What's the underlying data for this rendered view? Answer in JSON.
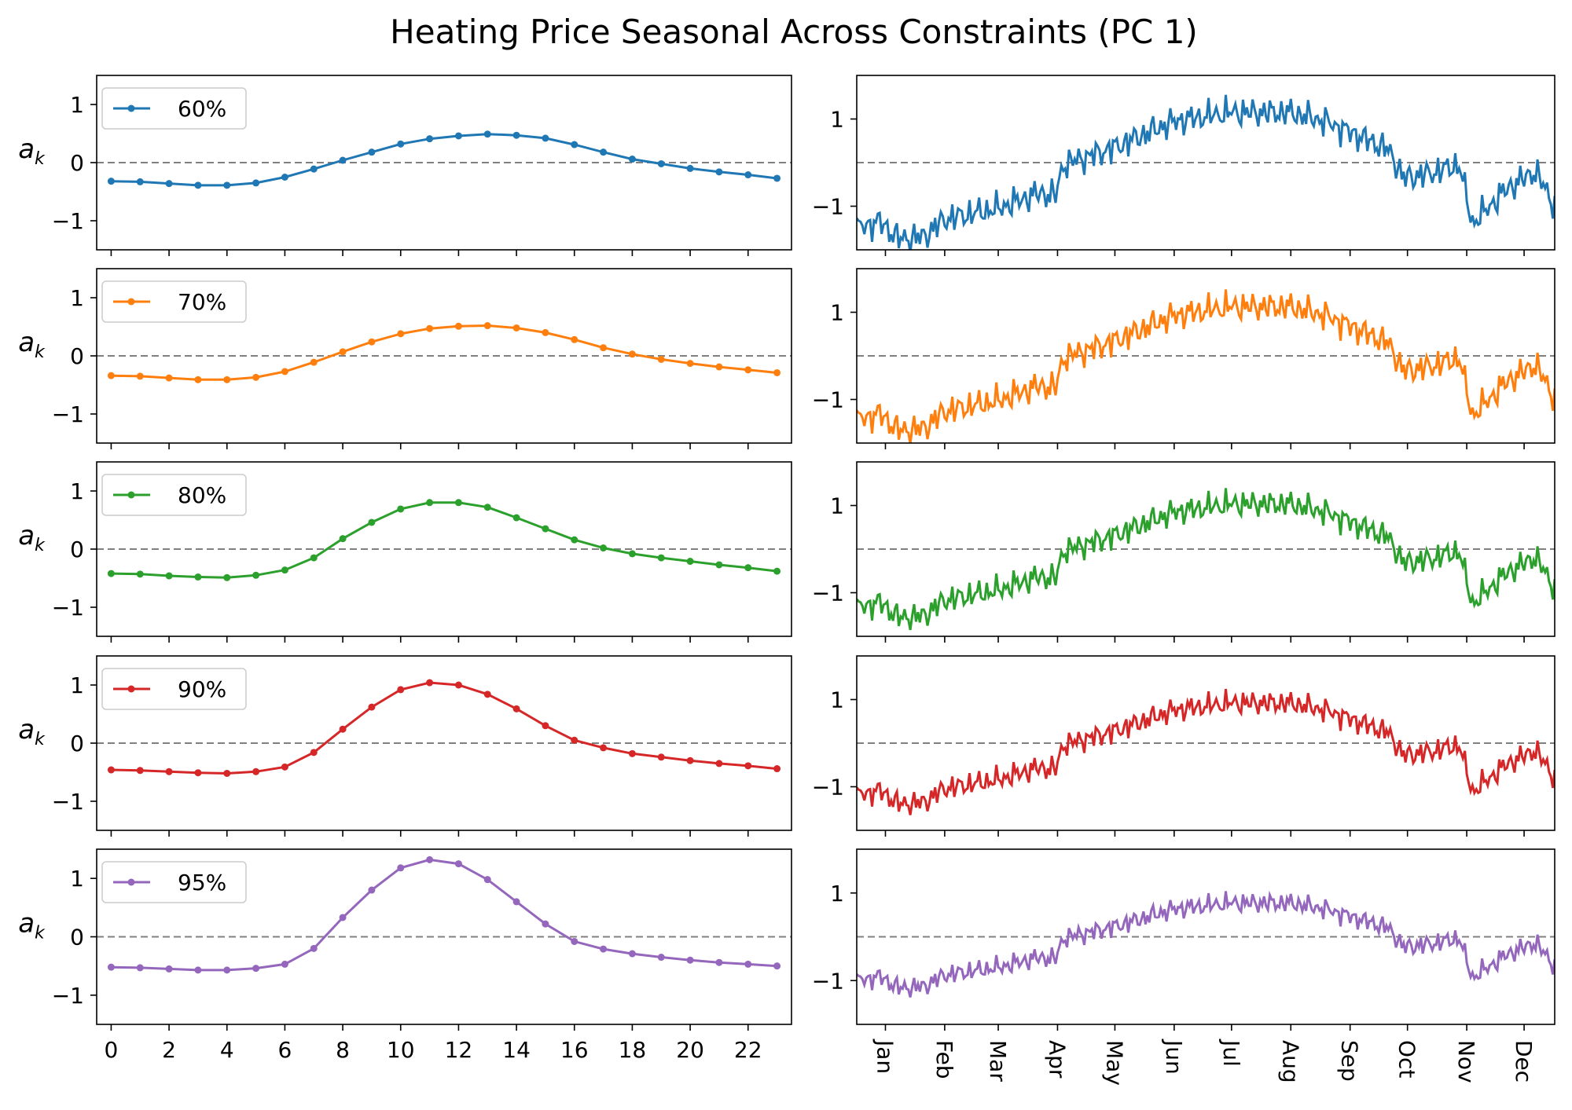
{
  "title": "Heating Price Seasonal Across Constraints (PC 1)",
  "colors": {
    "60%": "#1f77b4",
    "70%": "#ff7f0e",
    "80%": "#2ca02c",
    "90%": "#d62728",
    "95%": "#9467bd",
    "zero_line": "#808080"
  },
  "chart_data": [
    {
      "panel": "left",
      "type": "line",
      "markers": true,
      "ylabel": "a_k",
      "xlim": [
        -0.5,
        23.5
      ],
      "ylim": [
        -1.5,
        1.5
      ],
      "x_ticks": [
        0,
        2,
        4,
        6,
        8,
        10,
        12,
        14,
        16,
        18,
        20,
        22
      ],
      "y_ticks": [
        -1,
        0,
        1
      ],
      "reference_line": 0,
      "legend_location": "upper left",
      "x": [
        0,
        1,
        2,
        3,
        4,
        5,
        6,
        7,
        8,
        9,
        10,
        11,
        12,
        13,
        14,
        15,
        16,
        17,
        18,
        19,
        20,
        21,
        22,
        23
      ],
      "series": [
        {
          "name": "60%",
          "values": [
            -0.32,
            -0.33,
            -0.36,
            -0.39,
            -0.39,
            -0.35,
            -0.25,
            -0.11,
            0.04,
            0.18,
            0.32,
            0.41,
            0.46,
            0.49,
            0.47,
            0.42,
            0.31,
            0.18,
            0.06,
            -0.02,
            -0.1,
            -0.16,
            -0.21,
            -0.27
          ]
        },
        {
          "name": "70%",
          "values": [
            -0.34,
            -0.35,
            -0.38,
            -0.41,
            -0.41,
            -0.37,
            -0.27,
            -0.11,
            0.07,
            0.24,
            0.38,
            0.47,
            0.51,
            0.52,
            0.48,
            0.4,
            0.28,
            0.14,
            0.03,
            -0.06,
            -0.13,
            -0.19,
            -0.24,
            -0.29
          ]
        },
        {
          "name": "80%",
          "values": [
            -0.42,
            -0.43,
            -0.46,
            -0.48,
            -0.49,
            -0.45,
            -0.36,
            -0.15,
            0.18,
            0.46,
            0.69,
            0.8,
            0.8,
            0.72,
            0.54,
            0.35,
            0.16,
            0.02,
            -0.08,
            -0.15,
            -0.21,
            -0.27,
            -0.32,
            -0.38
          ]
        },
        {
          "name": "90%",
          "values": [
            -0.46,
            -0.47,
            -0.49,
            -0.51,
            -0.52,
            -0.49,
            -0.41,
            -0.16,
            0.24,
            0.62,
            0.92,
            1.04,
            1.0,
            0.84,
            0.59,
            0.3,
            0.05,
            -0.08,
            -0.18,
            -0.24,
            -0.3,
            -0.35,
            -0.39,
            -0.44
          ]
        },
        {
          "name": "95%",
          "values": [
            -0.52,
            -0.53,
            -0.55,
            -0.57,
            -0.57,
            -0.54,
            -0.47,
            -0.2,
            0.33,
            0.8,
            1.18,
            1.32,
            1.25,
            0.98,
            0.6,
            0.22,
            -0.08,
            -0.21,
            -0.29,
            -0.35,
            -0.4,
            -0.44,
            -0.47,
            -0.5
          ]
        }
      ]
    },
    {
      "panel": "right",
      "type": "line",
      "markers": false,
      "ylim": [
        -2.0,
        2.0
      ],
      "y_ticks": [
        -1,
        1
      ],
      "x_unit": "day of year",
      "xlim": [
        0,
        365
      ],
      "reference_line": 0,
      "month_ticks": [
        {
          "label": "Jan",
          "day": 15
        },
        {
          "label": "Feb",
          "day": 46
        },
        {
          "label": "Mar",
          "day": 74
        },
        {
          "label": "Apr",
          "day": 105
        },
        {
          "label": "May",
          "day": 135
        },
        {
          "label": "Jun",
          "day": 166
        },
        {
          "label": "Jul",
          "day": 196
        },
        {
          "label": "Aug",
          "day": 227
        },
        {
          "label": "Sep",
          "day": 258
        },
        {
          "label": "Oct",
          "day": 288
        },
        {
          "label": "Nov",
          "day": 319
        },
        {
          "label": "Dec",
          "day": 349
        }
      ],
      "series_profile_points": [
        {
          "day": 0,
          "value": -1.5
        },
        {
          "day": 12,
          "value": -1.35
        },
        {
          "day": 22,
          "value": -1.75
        },
        {
          "day": 35,
          "value": -1.7
        },
        {
          "day": 46,
          "value": -1.3
        },
        {
          "day": 74,
          "value": -1.05
        },
        {
          "day": 95,
          "value": -0.7
        },
        {
          "day": 104,
          "value": -0.75
        },
        {
          "day": 108,
          "value": -0.05
        },
        {
          "day": 135,
          "value": 0.35
        },
        {
          "day": 166,
          "value": 0.95
        },
        {
          "day": 196,
          "value": 1.15
        },
        {
          "day": 227,
          "value": 1.15
        },
        {
          "day": 245,
          "value": 0.95
        },
        {
          "day": 258,
          "value": 0.7
        },
        {
          "day": 278,
          "value": 0.3
        },
        {
          "day": 286,
          "value": -0.35
        },
        {
          "day": 300,
          "value": -0.25
        },
        {
          "day": 315,
          "value": -0.05
        },
        {
          "day": 322,
          "value": -1.4
        },
        {
          "day": 340,
          "value": -0.6
        },
        {
          "day": 355,
          "value": -0.2
        },
        {
          "day": 365,
          "value": -1.0
        }
      ],
      "series": [
        {
          "name": "60%",
          "scale": 1.0
        },
        {
          "name": "70%",
          "scale": 0.98
        },
        {
          "name": "80%",
          "scale": 0.9
        },
        {
          "name": "90%",
          "scale": 0.8
        },
        {
          "name": "95%",
          "scale": 0.67
        }
      ]
    }
  ]
}
